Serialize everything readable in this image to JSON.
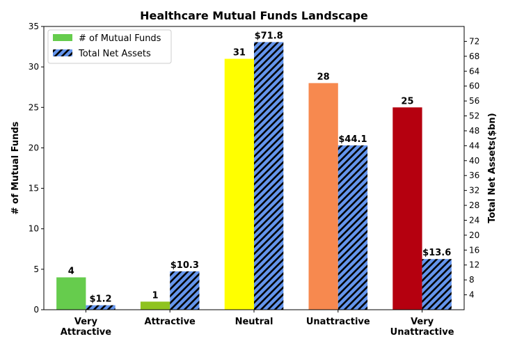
{
  "chart_data": {
    "type": "bar",
    "title": "Healthcare Mutual Funds Landscape",
    "categories": [
      [
        "Very",
        "Attractive"
      ],
      [
        "Attractive"
      ],
      [
        "Neutral"
      ],
      [
        "Unattractive"
      ],
      [
        "Very",
        "Unattractive"
      ]
    ],
    "series": [
      {
        "name": "# of Mutual Funds",
        "axis": "left",
        "values": [
          4,
          1,
          31,
          28,
          25
        ],
        "labels": [
          "4",
          "1",
          "31",
          "28",
          "25"
        ],
        "colors": [
          "#66cc4d",
          "#8fc31f",
          "#ffff00",
          "#f7894f",
          "#b5000f"
        ],
        "legend_color": "#66cc4d"
      },
      {
        "name": "Total Net Assets",
        "axis": "right",
        "values": [
          1.2,
          10.3,
          71.8,
          44.1,
          13.6
        ],
        "labels": [
          "$1.2",
          "$10.3",
          "$71.8",
          "$44.1",
          "$13.6"
        ],
        "color": "#6495ed",
        "hatch": "///"
      }
    ],
    "ylabel": "# of Mutual Funds",
    "ylabel_right": "Total Net Assets($bn)",
    "ylim": [
      0,
      35
    ],
    "ylim_right": [
      0,
      76
    ],
    "yticks": [
      0,
      5,
      10,
      15,
      20,
      25,
      30,
      35
    ],
    "yticks_right": [
      4,
      8,
      12,
      16,
      20,
      24,
      28,
      32,
      36,
      40,
      44,
      48,
      52,
      56,
      60,
      64,
      68,
      72
    ],
    "legend_position": "upper-left",
    "grid": false
  }
}
